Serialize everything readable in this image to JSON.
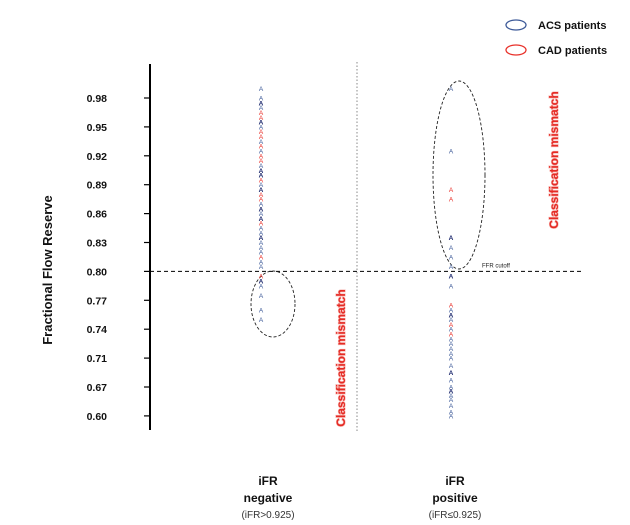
{
  "chart_data": {
    "type": "scatter",
    "ylabel": "Fractional Flow Reserve",
    "yticks": [
      "0.98",
      "0.95",
      "0.92",
      "0.89",
      "0.86",
      "0.83",
      "0.80",
      "0.77",
      "0.74",
      "0.71",
      "0.67",
      "0.60"
    ],
    "marker_glyph": "A",
    "categories": [
      {
        "title": "iFR",
        "subtitle": "negative",
        "note": "(iFR>0.925)"
      },
      {
        "title": "iFR",
        "subtitle": "positive",
        "note": "(iFR≤0.925)"
      }
    ],
    "legend": [
      {
        "name": "ACS patients",
        "color": "#3d5a98"
      },
      {
        "name": "CAD patients",
        "color": "#e8312a"
      }
    ],
    "colors": {
      "acs": "#3d5a98",
      "acs_dark": "#1e2a6e",
      "cad": "#e8312a",
      "mismatch": "#e52a24"
    },
    "cutoff": {
      "value": 0.8,
      "label": "FFR cutoff"
    },
    "annotations": [
      "Classification mismatch",
      "Classification mismatch"
    ],
    "series": [
      {
        "name": "iFR negative",
        "points": [
          {
            "y": 0.99,
            "g": "acs"
          },
          {
            "y": 0.98,
            "g": "acs"
          },
          {
            "y": 0.975,
            "g": "acsd"
          },
          {
            "y": 0.97,
            "g": "acs"
          },
          {
            "y": 0.965,
            "g": "cad"
          },
          {
            "y": 0.96,
            "g": "cad"
          },
          {
            "y": 0.955,
            "g": "acsd"
          },
          {
            "y": 0.95,
            "g": "acs"
          },
          {
            "y": 0.945,
            "g": "cad"
          },
          {
            "y": 0.94,
            "g": "cad"
          },
          {
            "y": 0.935,
            "g": "acs"
          },
          {
            "y": 0.93,
            "g": "cad"
          },
          {
            "y": 0.925,
            "g": "acs"
          },
          {
            "y": 0.92,
            "g": "cad"
          },
          {
            "y": 0.915,
            "g": "cad"
          },
          {
            "y": 0.91,
            "g": "acs"
          },
          {
            "y": 0.905,
            "g": "acsd"
          },
          {
            "y": 0.9,
            "g": "acsd"
          },
          {
            "y": 0.895,
            "g": "cad"
          },
          {
            "y": 0.89,
            "g": "acs"
          },
          {
            "y": 0.885,
            "g": "acsd"
          },
          {
            "y": 0.88,
            "g": "cad"
          },
          {
            "y": 0.875,
            "g": "cad"
          },
          {
            "y": 0.87,
            "g": "acs"
          },
          {
            "y": 0.865,
            "g": "acsd"
          },
          {
            "y": 0.86,
            "g": "acs"
          },
          {
            "y": 0.855,
            "g": "acsd"
          },
          {
            "y": 0.85,
            "g": "cad"
          },
          {
            "y": 0.845,
            "g": "acs"
          },
          {
            "y": 0.84,
            "g": "acs"
          },
          {
            "y": 0.835,
            "g": "acsd"
          },
          {
            "y": 0.83,
            "g": "acs"
          },
          {
            "y": 0.825,
            "g": "acs"
          },
          {
            "y": 0.82,
            "g": "acs"
          },
          {
            "y": 0.815,
            "g": "cad"
          },
          {
            "y": 0.81,
            "g": "acs"
          },
          {
            "y": 0.805,
            "g": "acs"
          },
          {
            "y": 0.795,
            "g": "cad"
          },
          {
            "y": 0.79,
            "g": "acsd"
          },
          {
            "y": 0.785,
            "g": "acs"
          },
          {
            "y": 0.775,
            "g": "acs"
          },
          {
            "y": 0.76,
            "g": "acs"
          },
          {
            "y": 0.75,
            "g": "acs"
          }
        ]
      },
      {
        "name": "iFR positive",
        "points": [
          {
            "y": 0.99,
            "g": "acs"
          },
          {
            "y": 0.925,
            "g": "acs"
          },
          {
            "y": 0.885,
            "g": "cad"
          },
          {
            "y": 0.875,
            "g": "cad"
          },
          {
            "y": 0.835,
            "g": "acsd"
          },
          {
            "y": 0.825,
            "g": "acs"
          },
          {
            "y": 0.815,
            "g": "acs"
          },
          {
            "y": 0.805,
            "g": "acs"
          },
          {
            "y": 0.795,
            "g": "acsd"
          },
          {
            "y": 0.785,
            "g": "acs"
          },
          {
            "y": 0.765,
            "g": "cad"
          },
          {
            "y": 0.76,
            "g": "acs"
          },
          {
            "y": 0.755,
            "g": "acsd"
          },
          {
            "y": 0.75,
            "g": "acs"
          },
          {
            "y": 0.745,
            "g": "cad"
          },
          {
            "y": 0.74,
            "g": "acs"
          },
          {
            "y": 0.735,
            "g": "cad"
          },
          {
            "y": 0.73,
            "g": "acs"
          },
          {
            "y": 0.725,
            "g": "acs"
          },
          {
            "y": 0.72,
            "g": "acs"
          },
          {
            "y": 0.715,
            "g": "acs"
          },
          {
            "y": 0.71,
            "g": "acs"
          },
          {
            "y": 0.7,
            "g": "acs"
          },
          {
            "y": 0.69,
            "g": "acsd"
          },
          {
            "y": 0.68,
            "g": "acs"
          },
          {
            "y": 0.67,
            "g": "acs"
          },
          {
            "y": 0.66,
            "g": "acsd"
          },
          {
            "y": 0.65,
            "g": "acs"
          },
          {
            "y": 0.64,
            "g": "acs"
          },
          {
            "y": 0.625,
            "g": "acs"
          },
          {
            "y": 0.61,
            "g": "acs"
          },
          {
            "y": 0.6,
            "g": "acs"
          }
        ]
      }
    ]
  }
}
